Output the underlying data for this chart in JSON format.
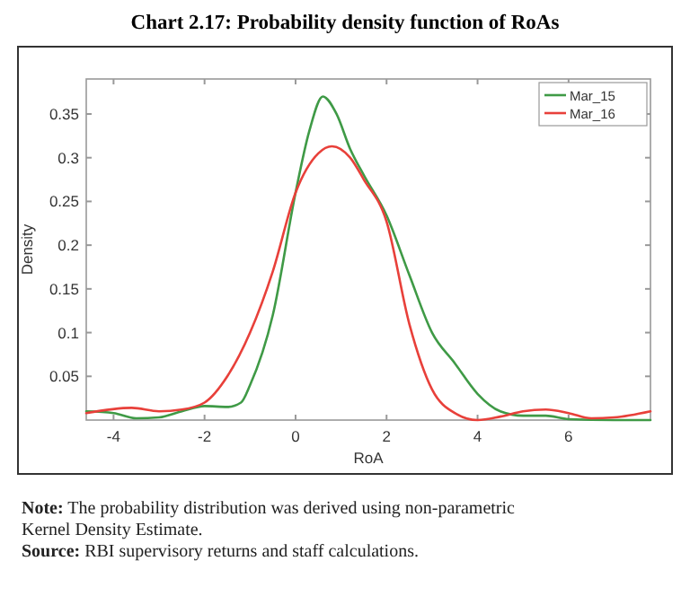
{
  "chart_data": {
    "type": "line",
    "title": "Chart 2.17: Probability density function of RoAs",
    "xlabel": "RoA",
    "ylabel": "Density",
    "xlim": [
      -4.6,
      7.8
    ],
    "xticks": [
      -4,
      -2,
      0,
      2,
      4,
      6
    ],
    "ylim": [
      0,
      0.39
    ],
    "yticks": [
      0.05,
      0.1,
      0.15,
      0.2,
      0.25,
      0.3,
      0.35
    ],
    "legend": "top right",
    "grid": false,
    "marker": "none",
    "line_style": "solid",
    "series": [
      {
        "name": "Mar_15",
        "color": "#3f9a46",
        "x": [
          -4.6,
          -4,
          -3.5,
          -3,
          -2.5,
          -2,
          -1.5,
          -1.2,
          -1,
          -0.5,
          0,
          0.3,
          0.6,
          0.9,
          1.2,
          1.5,
          2,
          2.5,
          3,
          3.5,
          4,
          4.5,
          5,
          5.5,
          6,
          7,
          7.8
        ],
        "values": [
          0.01,
          0.008,
          0.002,
          0.003,
          0.01,
          0.016,
          0.015,
          0.02,
          0.04,
          0.12,
          0.26,
          0.33,
          0.37,
          0.35,
          0.31,
          0.28,
          0.234,
          0.166,
          0.1,
          0.065,
          0.03,
          0.01,
          0.005,
          0.005,
          0.001,
          0,
          0
        ]
      },
      {
        "name": "Mar_16",
        "color": "#e8403a",
        "x": [
          -4.6,
          -3.6,
          -3,
          -2.5,
          -2,
          -1.5,
          -1,
          -0.5,
          0,
          0.5,
          0.8,
          1.2,
          1.5,
          2,
          2.5,
          3,
          3.5,
          4,
          4.5,
          5,
          5.5,
          6,
          6.5,
          7,
          7.8
        ],
        "values": [
          0.008,
          0.014,
          0.01,
          0.012,
          0.02,
          0.05,
          0.1,
          0.17,
          0.26,
          0.305,
          0.313,
          0.3,
          0.275,
          0.227,
          0.11,
          0.035,
          0.008,
          0,
          0.004,
          0.01,
          0.012,
          0.008,
          0.002,
          0.003,
          0.01
        ]
      }
    ],
    "annotations": [
      "Note: The probability distribution was derived using non-parametric Kernel Density Estimate.",
      "Source: RBI supervisory returns and staff calculations."
    ]
  }
}
